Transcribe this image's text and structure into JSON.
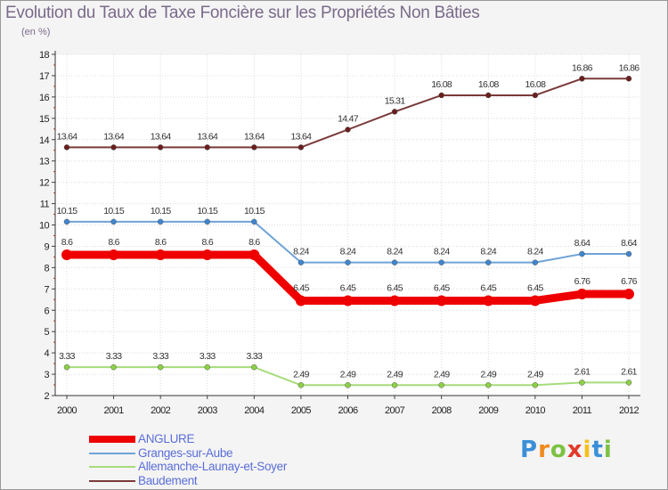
{
  "chart_data": {
    "type": "line",
    "title": "Evolution du Taux de Taxe Foncière sur les Propriétés Non Bâties",
    "unit_label": "(en %)",
    "xlabel": "",
    "ylabel": "",
    "x": [
      2000,
      2001,
      2002,
      2003,
      2004,
      2005,
      2006,
      2007,
      2008,
      2009,
      2010,
      2011,
      2012
    ],
    "ylim": [
      2,
      18
    ],
    "yticks": [
      2,
      3,
      4,
      5,
      6,
      7,
      8,
      9,
      10,
      11,
      12,
      13,
      14,
      15,
      16,
      17,
      18
    ],
    "legend_position": "bottom-left",
    "series": [
      {
        "name": "ANGLURE",
        "color": "#ee0000",
        "marker_color": "#ee0000",
        "values": [
          8.6,
          8.6,
          8.6,
          8.6,
          8.6,
          6.45,
          6.45,
          6.45,
          6.45,
          6.45,
          6.45,
          6.76,
          6.76
        ],
        "labels": [
          "8.6",
          "8.6",
          "8.6",
          "8.6",
          "8.6",
          "6.45",
          "6.45",
          "6.45",
          "6.45",
          "6.45",
          "6.45",
          "6.76",
          "6.76"
        ]
      },
      {
        "name": "Granges-sur-Aube",
        "color": "#6fa3d6",
        "marker_color": "#3f86cf",
        "values": [
          10.15,
          10.15,
          10.15,
          10.15,
          10.15,
          8.24,
          8.24,
          8.24,
          8.24,
          8.24,
          8.24,
          8.64,
          8.64
        ],
        "labels": [
          "10.15",
          "10.15",
          "10.15",
          "10.15",
          "10.15",
          "8.24",
          "8.24",
          "8.24",
          "8.24",
          "8.24",
          "8.24",
          "8.64",
          "8.64"
        ]
      },
      {
        "name": "Allemanche-Launay-et-Soyer",
        "color": "#a6dc7c",
        "marker_color": "#8dd146",
        "values": [
          3.33,
          3.33,
          3.33,
          3.33,
          3.33,
          2.49,
          2.49,
          2.49,
          2.49,
          2.49,
          2.49,
          2.61,
          2.61
        ],
        "labels": [
          "3.33",
          "3.33",
          "3.33",
          "3.33",
          "3.33",
          "2.49",
          "2.49",
          "2.49",
          "2.49",
          "2.49",
          "2.49",
          "2.61",
          "2.61"
        ]
      },
      {
        "name": "Baudement",
        "color": "#7a3a3a",
        "marker_color": "#6a1e1e",
        "values": [
          13.64,
          13.64,
          13.64,
          13.64,
          13.64,
          13.64,
          14.47,
          15.31,
          16.08,
          16.08,
          16.08,
          16.86,
          16.86
        ],
        "labels": [
          "13.64",
          "13.64",
          "13.64",
          "13.64",
          "13.64",
          "13.64",
          "14.47",
          "15.31",
          "16.08",
          "16.08",
          "16.08",
          "16.86",
          "16.86"
        ]
      }
    ]
  },
  "logo": {
    "letters": [
      "P",
      "r",
      "o",
      "x",
      "i",
      "t",
      "i"
    ],
    "colors": [
      "#3a8fd8",
      "#f08a1c",
      "#7cc242",
      "#e23a2a",
      "#f4c11a",
      "#3a8fd8",
      "#7cc242"
    ]
  }
}
